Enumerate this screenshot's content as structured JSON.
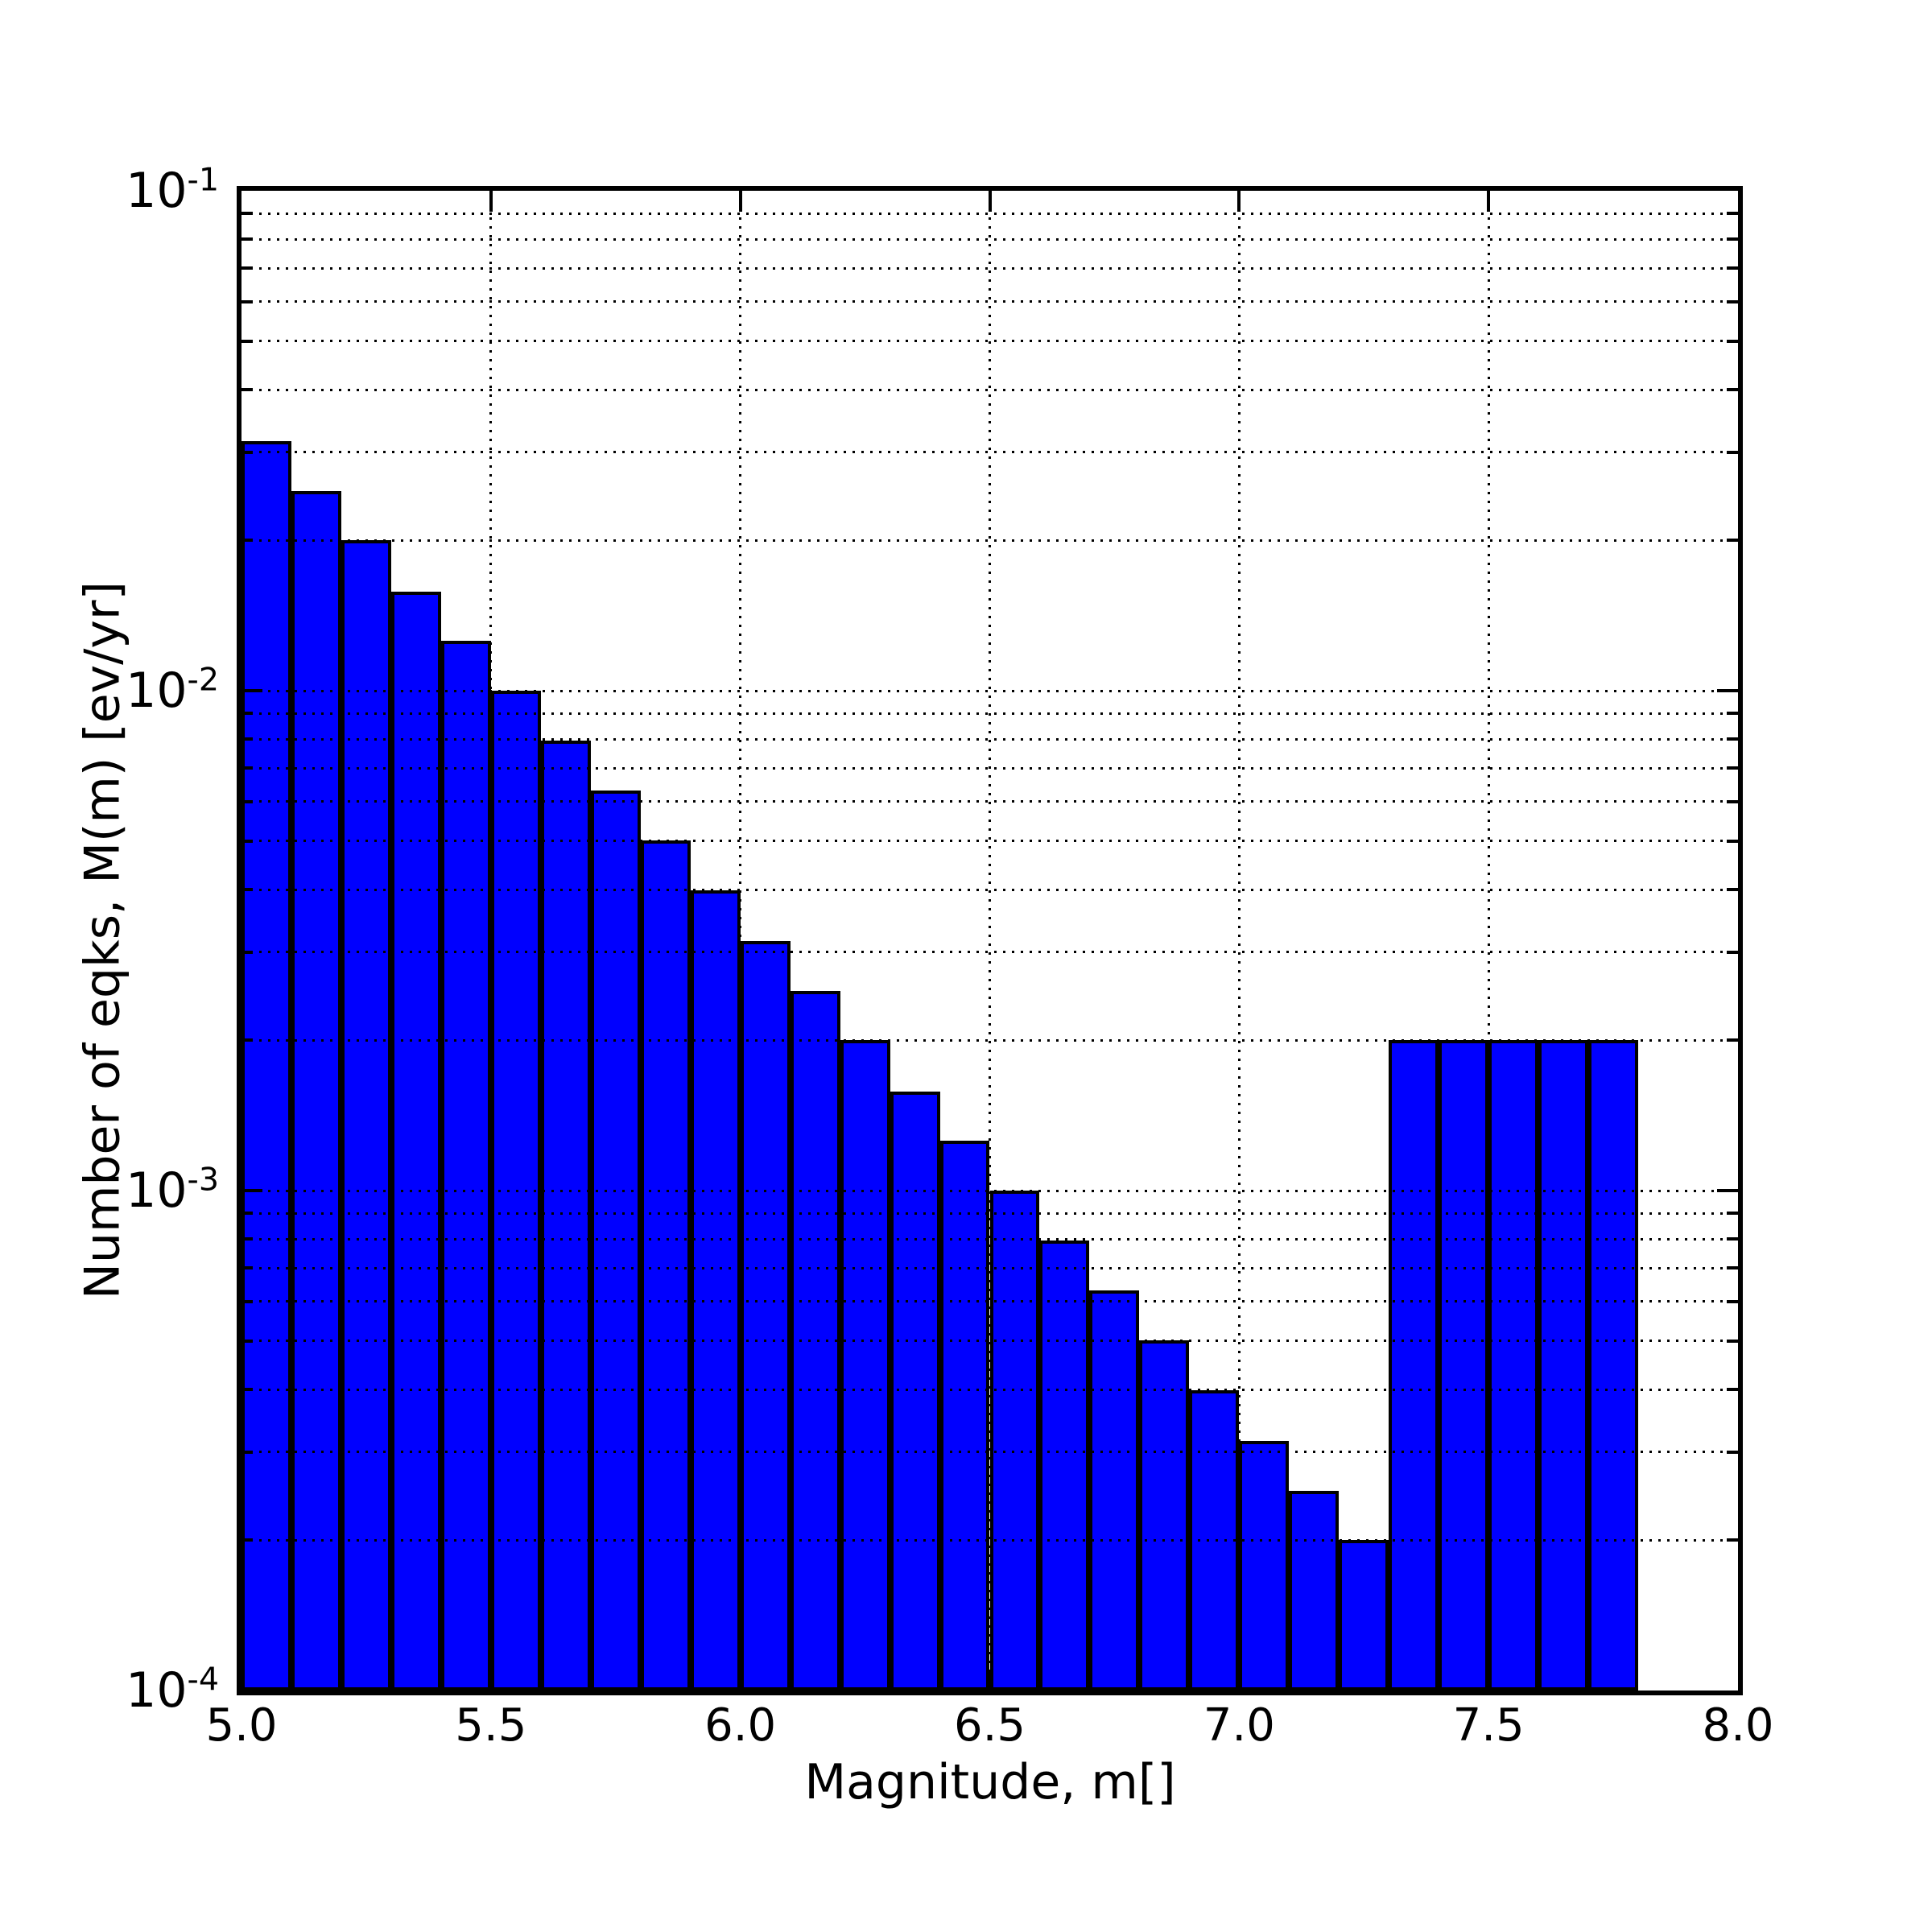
{
  "axes": {
    "xlabel": "Magnitude, m[]",
    "ylabel": "Number of eqks, M(m) [ev/yr]",
    "xlim": [
      5.0,
      8.0
    ],
    "ylim": [
      0.0001,
      0.1
    ],
    "yscale": "log",
    "x_ticks": [
      {
        "value": 5.0,
        "label": "5.0"
      },
      {
        "value": 5.5,
        "label": "5.5"
      },
      {
        "value": 6.0,
        "label": "6.0"
      },
      {
        "value": 6.5,
        "label": "6.5"
      },
      {
        "value": 7.0,
        "label": "7.0"
      },
      {
        "value": 7.5,
        "label": "7.5"
      },
      {
        "value": 8.0,
        "label": "8.0"
      }
    ],
    "y_ticks": [
      {
        "log10": -1,
        "base": "10",
        "exp": "-1"
      },
      {
        "log10": -2,
        "base": "10",
        "exp": "-2"
      },
      {
        "log10": -3,
        "base": "10",
        "exp": "-3"
      },
      {
        "log10": -4,
        "base": "10",
        "exp": "-4"
      }
    ],
    "grid": {
      "linestyle": "dotted",
      "color": "#000000",
      "x_lines_at": [
        5.5,
        6.0,
        6.5,
        7.0,
        7.5
      ],
      "y_minor": true,
      "drawn_above_bars": true
    }
  },
  "chart_data": {
    "type": "bar",
    "title": "",
    "xlabel": "Magnitude, m[]",
    "ylabel": "Number of eqks, M(m) [ev/yr]",
    "yscale": "log",
    "xlim": [
      5.0,
      8.0
    ],
    "ylim": [
      0.0001,
      0.1
    ],
    "bin_width": 0.1,
    "bars": [
      {
        "m_lo": 5.0,
        "m_hi": 5.1,
        "value": 0.0316
      },
      {
        "m_lo": 5.1,
        "m_hi": 5.2,
        "value": 0.0251
      },
      {
        "m_lo": 5.2,
        "m_hi": 5.3,
        "value": 0.02
      },
      {
        "m_lo": 5.3,
        "m_hi": 5.4,
        "value": 0.0158
      },
      {
        "m_lo": 5.4,
        "m_hi": 5.5,
        "value": 0.0126
      },
      {
        "m_lo": 5.5,
        "m_hi": 5.6,
        "value": 0.01
      },
      {
        "m_lo": 5.6,
        "m_hi": 5.7,
        "value": 0.00794
      },
      {
        "m_lo": 5.7,
        "m_hi": 5.8,
        "value": 0.00631
      },
      {
        "m_lo": 5.8,
        "m_hi": 5.9,
        "value": 0.00501
      },
      {
        "m_lo": 5.9,
        "m_hi": 6.0,
        "value": 0.00398
      },
      {
        "m_lo": 6.0,
        "m_hi": 6.1,
        "value": 0.00316
      },
      {
        "m_lo": 6.1,
        "m_hi": 6.2,
        "value": 0.00251
      },
      {
        "m_lo": 6.2,
        "m_hi": 6.3,
        "value": 0.002
      },
      {
        "m_lo": 6.3,
        "m_hi": 6.4,
        "value": 0.00158
      },
      {
        "m_lo": 6.4,
        "m_hi": 6.5,
        "value": 0.00126
      },
      {
        "m_lo": 6.5,
        "m_hi": 6.6,
        "value": 0.001
      },
      {
        "m_lo": 6.6,
        "m_hi": 6.7,
        "value": 0.000794
      },
      {
        "m_lo": 6.7,
        "m_hi": 6.8,
        "value": 0.000631
      },
      {
        "m_lo": 6.8,
        "m_hi": 6.9,
        "value": 0.000501
      },
      {
        "m_lo": 6.9,
        "m_hi": 7.0,
        "value": 0.000398
      },
      {
        "m_lo": 7.0,
        "m_hi": 7.1,
        "value": 0.000316
      },
      {
        "m_lo": 7.1,
        "m_hi": 7.2,
        "value": 0.000251
      },
      {
        "m_lo": 7.2,
        "m_hi": 7.3,
        "value": 0.0002
      },
      {
        "m_lo": 7.3,
        "m_hi": 7.4,
        "value": 0.002
      },
      {
        "m_lo": 7.4,
        "m_hi": 7.5,
        "value": 0.002
      },
      {
        "m_lo": 7.5,
        "m_hi": 7.6,
        "value": 0.002
      },
      {
        "m_lo": 7.6,
        "m_hi": 7.7,
        "value": 0.002
      },
      {
        "m_lo": 7.7,
        "m_hi": 7.8,
        "value": 0.002
      }
    ]
  },
  "colors": {
    "bar_fill": "#0000ff",
    "bar_edge": "#000000",
    "spine": "#000000",
    "grid": "#000000",
    "background": "#ffffff",
    "text": "#000000"
  }
}
